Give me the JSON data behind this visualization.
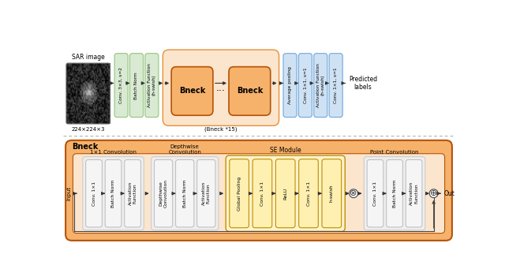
{
  "fig_width": 6.4,
  "fig_height": 3.46,
  "dpi": 100,
  "bg_color": "#ffffff",
  "top": {
    "img_label_top": "SAR image",
    "img_label_bot": "224×224×3",
    "green_labels": [
      "Conv. 3×3, s=2",
      "Batch Norm",
      "Activation Function\n(h-swish)"
    ],
    "green_face": "#d9ead3",
    "green_edge": "#93c47d",
    "bneck_bg_face": "#fce5cd",
    "bneck_bg_edge": "#e69138",
    "bneck_block_face": "#f6b26b",
    "bneck_block_edge": "#b45309",
    "bneck_label": "(Bneck *15)",
    "blue_labels": [
      "Average pooling",
      "Conv. 1×1, s=1",
      "Activation Function\n(h-swish)",
      "Conv. 1×1, s=1"
    ],
    "blue_face": "#cfe2f3",
    "blue_edge": "#6fa8dc",
    "out_label": "Predicted\nlabels"
  },
  "bot": {
    "title": "Bneck",
    "bg_face": "#f6b26b",
    "bg_edge": "#b45309",
    "inner_bg_face": "#fce5cd",
    "inner_bg_edge": "#b45309",
    "grp_face": "#efefef",
    "grp_edge": "#bbbbbb",
    "grp1_title": "1×1 Convolution",
    "grp1_blocks": [
      "Conv. 1×1",
      "Batch Norm",
      "Activation\nFunction"
    ],
    "grp2_title": "Depthwise\nConvolution",
    "grp2_blocks": [
      "Depthwise\nConvolution",
      "Batch Norm",
      "Activation\nFunction"
    ],
    "se_title": "SE Module",
    "se_bg_face": "#fff2cc",
    "se_bg_edge": "#bf9000",
    "se_block_face": "#fef0b0",
    "se_block_edge": "#bf9000",
    "se_blocks": [
      "Global Pooling",
      "Conv. 1×1",
      "ReLU",
      "Conv. 1×1",
      "h-swish"
    ],
    "grp4_title": "Point Convolution",
    "grp4_blocks": [
      "Conv. 1×1",
      "Batch Norm",
      "Activation\nFunction"
    ],
    "input_label": "Input",
    "out_label": "Out"
  }
}
